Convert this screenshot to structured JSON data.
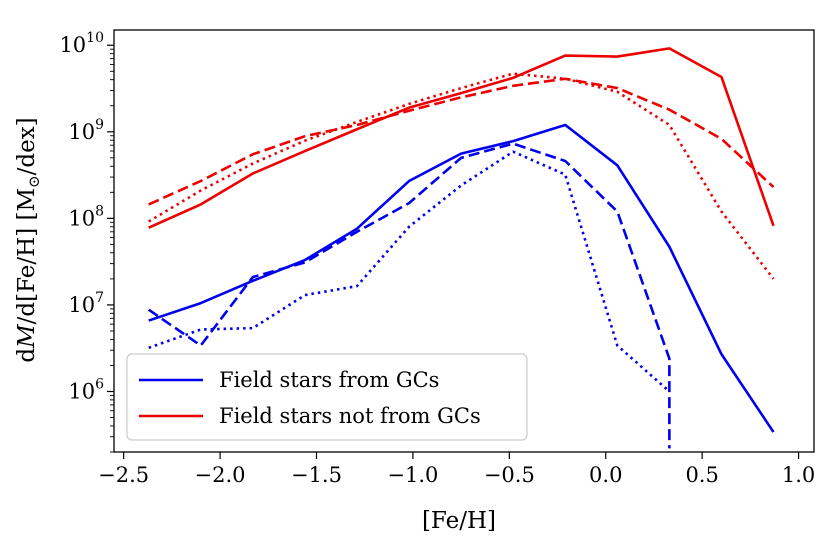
{
  "chart_data": {
    "type": "line",
    "title": "",
    "xlabel": "[Fe/H]",
    "ylabel": "dM/d[Fe/H] [M☉/dex]",
    "ylabel_parts": {
      "prefix": "d",
      "var": "M",
      "mid": "/d[Fe/H] [M",
      "sub": "⊙",
      "suffix": "/dex]"
    },
    "xscale": "linear",
    "yscale": "log",
    "xlim": [
      -2.55,
      1.08
    ],
    "ylim": [
      200000.0,
      15000000000.0
    ],
    "xticks": [
      -2.5,
      -2.0,
      -1.5,
      -1.0,
      -0.5,
      0.0,
      0.5,
      1.0
    ],
    "xtick_labels": [
      "−2.5",
      "−2.0",
      "−1.5",
      "−1.0",
      "−0.5",
      "0.0",
      "0.5",
      "1.0"
    ],
    "yticks": [
      {
        "base": "10",
        "exp": "6",
        "value": 1000000.0
      },
      {
        "base": "10",
        "exp": "7",
        "value": 10000000.0
      },
      {
        "base": "10",
        "exp": "8",
        "value": 100000000.0
      },
      {
        "base": "10",
        "exp": "9",
        "value": 1000000000.0
      },
      {
        "base": "10",
        "exp": "10",
        "value": 10000000000.0
      }
    ],
    "grid": false,
    "legend_position": "lower-left",
    "legend": [
      {
        "label": "Field stars from GCs",
        "color": "#0000ee"
      },
      {
        "label": "Field stars not from GCs",
        "color": "#ee0000"
      }
    ],
    "series": [
      {
        "name": "blue-solid",
        "color": "#0000ee",
        "style": "solid",
        "x": [
          -2.37,
          -2.1,
          -1.83,
          -1.56,
          -1.29,
          -1.02,
          -0.75,
          -0.48,
          -0.21,
          0.06,
          0.33,
          0.6,
          0.87
        ],
        "y": [
          6600000.0,
          10500000.0,
          19000000.0,
          33000000.0,
          76000000.0,
          270000000.0,
          560000000.0,
          780000000.0,
          1200000000.0,
          410000000.0,
          47000000.0,
          2700000.0,
          340000.0
        ]
      },
      {
        "name": "blue-dashed",
        "color": "#0000ee",
        "style": "dashed",
        "x": [
          -2.37,
          -2.1,
          -1.83,
          -1.56,
          -1.29,
          -1.02,
          -0.75,
          -0.48,
          -0.21,
          0.06,
          0.33,
          0.33
        ],
        "y": [
          8800000.0,
          3400000.0,
          21000000.0,
          31000000.0,
          70000000.0,
          150000000.0,
          500000000.0,
          730000000.0,
          460000000.0,
          120000000.0,
          2400000.0,
          220000.0
        ]
      },
      {
        "name": "blue-dotted",
        "color": "#0000ee",
        "style": "dotted",
        "x": [
          -2.37,
          -2.1,
          -1.83,
          -1.56,
          -1.29,
          -1.02,
          -0.75,
          -0.48,
          -0.21,
          0.06,
          0.33
        ],
        "y": [
          3200000.0,
          5200000.0,
          5400000.0,
          13000000.0,
          16500000.0,
          80000000.0,
          240000000.0,
          590000000.0,
          320000000.0,
          3400000.0,
          1000000.0
        ]
      },
      {
        "name": "red-solid",
        "color": "#ee0000",
        "style": "solid",
        "x": [
          -2.37,
          -2.1,
          -1.83,
          -1.56,
          -1.29,
          -1.02,
          -0.75,
          -0.48,
          -0.21,
          0.06,
          0.33,
          0.6,
          0.87
        ],
        "y": [
          78000000.0,
          145000000.0,
          330000000.0,
          600000000.0,
          1070000000.0,
          1900000000.0,
          2800000000.0,
          4200000000.0,
          7600000000.0,
          7400000000.0,
          9200000000.0,
          4300000000.0,
          82000000.0
        ]
      },
      {
        "name": "red-dashed",
        "color": "#ee0000",
        "style": "dashed",
        "x": [
          -2.37,
          -2.1,
          -1.83,
          -1.56,
          -1.29,
          -1.02,
          -0.75,
          -0.48,
          -0.21,
          0.06,
          0.33,
          0.6,
          0.87
        ],
        "y": [
          145000000.0,
          270000000.0,
          550000000.0,
          890000000.0,
          1200000000.0,
          1750000000.0,
          2500000000.0,
          3400000000.0,
          4100000000.0,
          3200000000.0,
          1800000000.0,
          830000000.0,
          230000000.0
        ]
      },
      {
        "name": "red-dotted",
        "color": "#ee0000",
        "style": "dotted",
        "x": [
          -2.37,
          -2.1,
          -1.83,
          -1.56,
          -1.29,
          -1.02,
          -0.75,
          -0.48,
          -0.21,
          0.06,
          0.33,
          0.6,
          0.87
        ],
        "y": [
          92000000.0,
          210000000.0,
          430000000.0,
          790000000.0,
          1300000000.0,
          2100000000.0,
          3200000000.0,
          4700000000.0,
          4100000000.0,
          2900000000.0,
          1200000000.0,
          120000000.0,
          20000000.0
        ]
      }
    ]
  }
}
